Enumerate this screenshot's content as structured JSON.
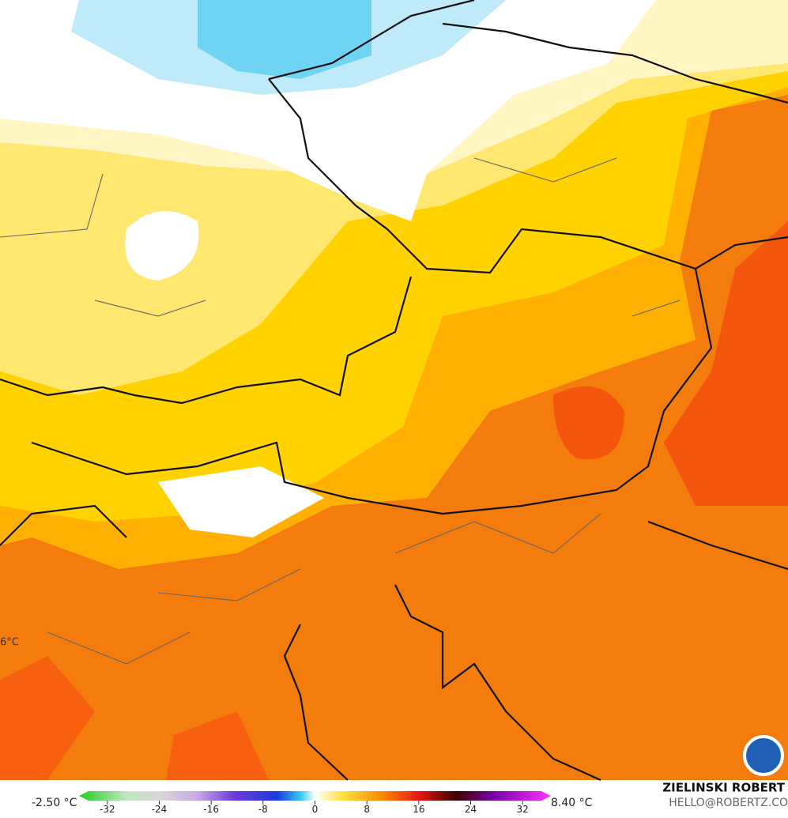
{
  "map": {
    "corner_label": "6°C",
    "min_label": "-2.50 °C",
    "max_label": "8.40 °C",
    "colorbar": {
      "range": [
        -36,
        36
      ],
      "ticks": [
        -32,
        -24,
        -16,
        -8,
        0,
        8,
        16,
        24,
        32
      ]
    },
    "credit": {
      "name": "ZIELINSKI ROBERT",
      "email": "HELLO@ROBERTZ.CO"
    }
  }
}
